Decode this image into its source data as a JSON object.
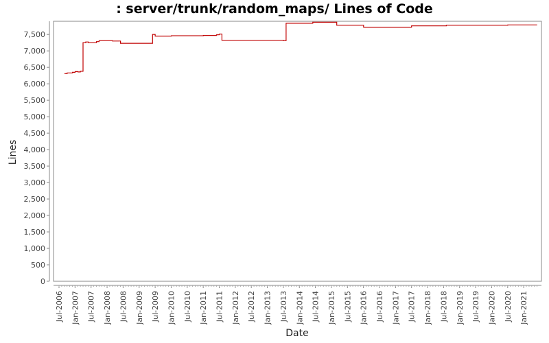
{
  "chart_data": {
    "type": "line",
    "title": ": server/trunk/random_maps/ Lines of Code",
    "xlabel": "Date",
    "ylabel": "Lines",
    "x_tick_labels": [
      "Jul-2006",
      "Jan-2007",
      "Jul-2007",
      "Jan-2008",
      "Jul-2008",
      "Jan-2009",
      "Jul-2009",
      "Jan-2010",
      "Jul-2010",
      "Jan-2011",
      "Jul-2011",
      "Jan-2012",
      "Jul-2012",
      "Jan-2013",
      "Jul-2013",
      "Jan-2014",
      "Jul-2014",
      "Jan-2015",
      "Jul-2015",
      "Jan-2016",
      "Jul-2016",
      "Jan-2017",
      "Jul-2017",
      "Jan-2018",
      "Jul-2018",
      "Jan-2019",
      "Jul-2019",
      "Jan-2020",
      "Jul-2020",
      "Jan-2021"
    ],
    "y_tick_labels": [
      "0",
      "500",
      "1,000",
      "1,500",
      "2,000",
      "2,500",
      "3,000",
      "3,500",
      "4,000",
      "4,500",
      "5,000",
      "5,500",
      "6,000",
      "6,500",
      "7,000",
      "7,500"
    ],
    "ylim": [
      0,
      7900
    ],
    "grid": false,
    "line_color": "#c00000",
    "series": [
      {
        "x": [
          "2006-09",
          "2006-10",
          "2006-12",
          "2007-01",
          "2007-02",
          "2007-03",
          "2007-04",
          "2007-05",
          "2007-06",
          "2007-09",
          "2007-10",
          "2008-02",
          "2008-03",
          "2008-06",
          "2009-01",
          "2009-06",
          "2009-07",
          "2009-12",
          "2010-01",
          "2011-01",
          "2011-06",
          "2011-07",
          "2011-08",
          "2013-05",
          "2013-07",
          "2013-08",
          "2014-05",
          "2014-06",
          "2015-02",
          "2015-03",
          "2016-01",
          "2017-06",
          "2017-07",
          "2018-07",
          "2018-08",
          "2020-06",
          "2020-07",
          "2021-03"
        ],
        "y": [
          6310,
          6330,
          6350,
          6370,
          6360,
          6380,
          7250,
          7270,
          7250,
          7280,
          7310,
          7310,
          7300,
          7230,
          7230,
          7500,
          7450,
          7450,
          7460,
          7470,
          7490,
          7510,
          7320,
          7320,
          7310,
          7840,
          7840,
          7870,
          7870,
          7780,
          7720,
          7720,
          7760,
          7760,
          7780,
          7780,
          7790,
          7790
        ]
      }
    ]
  }
}
